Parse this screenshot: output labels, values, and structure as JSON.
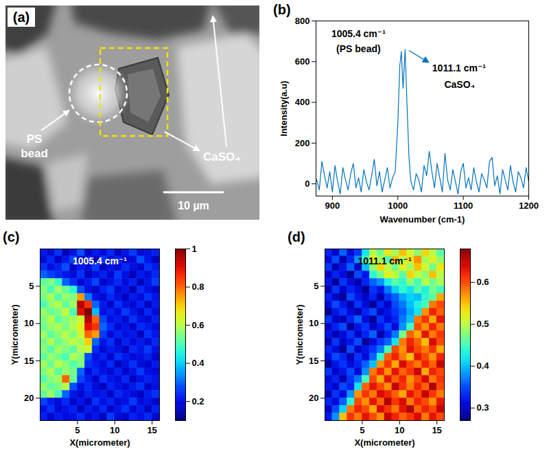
{
  "chart_data": [
    {
      "type": "image",
      "label": "(a)",
      "annotations": [
        "PS bead",
        "CaSO₄"
      ],
      "scale_bar": "10 µm"
    },
    {
      "type": "line",
      "label": "(b)",
      "color": "#0072bd",
      "x": [
        876,
        880,
        884,
        888,
        892,
        896,
        900,
        904,
        908,
        912,
        916,
        920,
        924,
        928,
        932,
        936,
        940,
        944,
        948,
        952,
        956,
        960,
        964,
        968,
        972,
        976,
        980,
        984,
        988,
        992,
        996,
        1000,
        1003,
        1005.4,
        1008,
        1011.1,
        1014,
        1017,
        1020,
        1024,
        1028,
        1032,
        1036,
        1040,
        1044,
        1048,
        1052,
        1056,
        1060,
        1064,
        1068,
        1072,
        1076,
        1080,
        1084,
        1088,
        1092,
        1096,
        1100,
        1104,
        1108,
        1112,
        1116,
        1120,
        1124,
        1128,
        1132,
        1136,
        1140,
        1144,
        1148,
        1152,
        1156,
        1160,
        1164,
        1168,
        1172,
        1176,
        1180,
        1184,
        1188,
        1192,
        1196,
        1200
      ],
      "values": [
        20,
        -30,
        110,
        40,
        -20,
        60,
        -40,
        90,
        10,
        -50,
        80,
        20,
        -30,
        50,
        100,
        -20,
        30,
        -40,
        70,
        10,
        -30,
        40,
        120,
        -10,
        60,
        -40,
        20,
        80,
        -20,
        30,
        60,
        300,
        580,
        650,
        470,
        660,
        390,
        130,
        10,
        -30,
        50,
        20,
        -40,
        90,
        40,
        160,
        60,
        -20,
        100,
        30,
        -40,
        150,
        20,
        -30,
        70,
        10,
        -50,
        60,
        100,
        -20,
        30,
        -30,
        80,
        10,
        -40,
        50,
        20,
        -20,
        110,
        130,
        -10,
        40,
        -50,
        70,
        20,
        -30,
        90,
        10,
        -40,
        60,
        30,
        -20,
        80,
        10
      ],
      "xlim": [
        875,
        1200
      ],
      "xticks": [
        900,
        1000,
        1100,
        1200
      ],
      "ylim": [
        -60,
        800
      ],
      "yticks": [
        0,
        200,
        400,
        600,
        800
      ],
      "xlabel": "Wavenumber (cm-1)",
      "ylabel": "Intensity(a.u)",
      "annotations": [
        {
          "x": 1005.4,
          "text": [
            "1005.4 cm⁻¹",
            "(PS bead)"
          ]
        },
        {
          "x": 1011.1,
          "text": [
            "1011.1 cm⁻¹",
            "CaSO₄"
          ]
        }
      ]
    },
    {
      "type": "heatmap",
      "label": "(c)",
      "title": "1005.4 cm⁻¹",
      "xlabel": "X(micrometer)",
      "ylabel": "Y(micrometer)",
      "xlim": [
        0,
        16
      ],
      "xticks": [
        5,
        10,
        15
      ],
      "ylim": [
        0,
        23
      ],
      "yticks": [
        5,
        10,
        15,
        20
      ],
      "x_edges": [
        0,
        1,
        2,
        3,
        4,
        5,
        6,
        7,
        8,
        9,
        10,
        11,
        12,
        13,
        14,
        15,
        16
      ],
      "y_edges": [
        0,
        1,
        2,
        3,
        4,
        5,
        6,
        7,
        8,
        9,
        10,
        11,
        12,
        13,
        14,
        15,
        16,
        17,
        18,
        19,
        20,
        21,
        22,
        23
      ],
      "colorbar_lim": [
        0.1,
        1
      ],
      "colorbar_ticks": [
        0.2,
        0.4,
        0.6,
        0.8,
        1
      ],
      "values": [
        [
          0.22,
          0.18,
          0.25,
          0.15,
          0.2,
          0.28,
          0.17,
          0.22,
          0.19,
          0.24,
          0.16,
          0.21,
          0.26,
          0.18,
          0.2,
          0.23
        ],
        [
          0.19,
          0.24,
          0.16,
          0.21,
          0.27,
          0.18,
          0.22,
          0.15,
          0.25,
          0.2,
          0.23,
          0.17,
          0.19,
          0.28,
          0.21,
          0.16
        ],
        [
          0.25,
          0.2,
          0.23,
          0.28,
          0.17,
          0.22,
          0.19,
          0.26,
          0.16,
          0.21,
          0.18,
          0.24,
          0.2,
          0.17,
          0.25,
          0.22
        ],
        [
          0.3,
          0.27,
          0.24,
          0.21,
          0.19,
          0.25,
          0.16,
          0.2,
          0.23,
          0.18,
          0.26,
          0.2,
          0.15,
          0.22,
          0.19,
          0.24
        ],
        [
          0.52,
          0.55,
          0.49,
          0.3,
          0.24,
          0.18,
          0.22,
          0.27,
          0.17,
          0.2,
          0.24,
          0.19,
          0.23,
          0.16,
          0.21,
          0.26
        ],
        [
          0.56,
          0.5,
          0.58,
          0.53,
          0.47,
          0.28,
          0.2,
          0.17,
          0.23,
          0.26,
          0.18,
          0.21,
          0.15,
          0.24,
          0.2,
          0.17
        ],
        [
          0.54,
          0.59,
          0.51,
          0.57,
          0.55,
          0.75,
          0.32,
          0.21,
          0.18,
          0.24,
          0.2,
          0.16,
          0.22,
          0.19,
          0.25,
          0.21
        ],
        [
          0.5,
          0.56,
          0.6,
          0.52,
          0.58,
          0.95,
          0.85,
          0.3,
          0.22,
          0.17,
          0.25,
          0.2,
          0.18,
          0.23,
          0.16,
          0.22
        ],
        [
          0.57,
          0.53,
          0.55,
          0.61,
          0.5,
          0.9,
          1.0,
          0.38,
          0.2,
          0.23,
          0.19,
          0.26,
          0.21,
          0.17,
          0.24,
          0.19
        ],
        [
          0.55,
          0.6,
          0.52,
          0.56,
          0.58,
          0.62,
          0.95,
          0.8,
          0.27,
          0.2,
          0.22,
          0.18,
          0.25,
          0.2,
          0.18,
          0.23
        ],
        [
          0.53,
          0.57,
          0.59,
          0.54,
          0.6,
          0.65,
          0.9,
          0.85,
          0.3,
          0.24,
          0.18,
          0.21,
          0.17,
          0.24,
          0.22,
          0.19
        ],
        [
          0.58,
          0.52,
          0.56,
          0.6,
          0.55,
          0.63,
          0.8,
          0.75,
          0.26,
          0.19,
          0.23,
          0.2,
          0.22,
          0.16,
          0.25,
          0.21
        ],
        [
          0.54,
          0.59,
          0.53,
          0.57,
          0.61,
          0.58,
          0.7,
          0.3,
          0.21,
          0.25,
          0.17,
          0.23,
          0.19,
          0.22,
          0.18,
          0.24
        ],
        [
          0.56,
          0.51,
          0.58,
          0.55,
          0.52,
          0.6,
          0.62,
          0.24,
          0.18,
          0.22,
          0.2,
          0.16,
          0.24,
          0.21,
          0.26,
          0.2
        ],
        [
          0.52,
          0.57,
          0.54,
          0.5,
          0.59,
          0.56,
          0.28,
          0.2,
          0.23,
          0.17,
          0.25,
          0.22,
          0.18,
          0.2,
          0.23,
          0.17
        ],
        [
          0.58,
          0.53,
          0.6,
          0.56,
          0.51,
          0.55,
          0.25,
          0.22,
          0.19,
          0.24,
          0.16,
          0.2,
          0.25,
          0.19,
          0.17,
          0.22
        ],
        [
          0.55,
          0.59,
          0.52,
          0.57,
          0.54,
          0.3,
          0.19,
          0.24,
          0.2,
          0.18,
          0.23,
          0.17,
          0.21,
          0.26,
          0.2,
          0.18
        ],
        [
          0.51,
          0.56,
          0.58,
          0.8,
          0.53,
          0.27,
          0.22,
          0.17,
          0.25,
          0.21,
          0.19,
          0.24,
          0.16,
          0.2,
          0.23,
          0.21
        ],
        [
          0.57,
          0.52,
          0.55,
          0.6,
          0.28,
          0.2,
          0.24,
          0.19,
          0.16,
          0.23,
          0.2,
          0.18,
          0.22,
          0.25,
          0.17,
          0.2
        ],
        [
          0.53,
          0.58,
          0.5,
          0.3,
          0.21,
          0.18,
          0.23,
          0.2,
          0.22,
          0.17,
          0.24,
          0.21,
          0.19,
          0.16,
          0.22,
          0.25
        ],
        [
          0.27,
          0.22,
          0.19,
          0.24,
          0.17,
          0.21,
          0.16,
          0.25,
          0.2,
          0.23,
          0.18,
          0.2,
          0.26,
          0.19,
          0.21,
          0.17
        ],
        [
          0.2,
          0.25,
          0.18,
          0.21,
          0.23,
          0.16,
          0.22,
          0.19,
          0.24,
          0.17,
          0.21,
          0.25,
          0.18,
          0.22,
          0.16,
          0.23
        ],
        [
          0.23,
          0.17,
          0.22,
          0.19,
          0.2,
          0.24,
          0.18,
          0.21,
          0.16,
          0.26,
          0.19,
          0.17,
          0.23,
          0.2,
          0.24,
          0.18
        ]
      ]
    },
    {
      "type": "heatmap",
      "label": "(d)",
      "title": "1011.1 cm⁻¹",
      "xlabel": "X(micrometer)",
      "ylabel": "Y(micrometer)",
      "xlim": [
        0,
        16
      ],
      "xticks": [
        5,
        10,
        15
      ],
      "ylim": [
        0,
        23
      ],
      "yticks": [
        5,
        10,
        15,
        20
      ],
      "x_edges": [
        0,
        1,
        2,
        3,
        4,
        5,
        6,
        7,
        8,
        9,
        10,
        11,
        12,
        13,
        14,
        15,
        16
      ],
      "y_edges": [
        0,
        1,
        2,
        3,
        4,
        5,
        6,
        7,
        8,
        9,
        10,
        11,
        12,
        13,
        14,
        15,
        16,
        17,
        18,
        19,
        20,
        21,
        22,
        23
      ],
      "colorbar_lim": [
        0.27,
        0.68
      ],
      "colorbar_ticks": [
        0.3,
        0.4,
        0.5,
        0.6
      ],
      "values": [
        [
          0.33,
          0.3,
          0.36,
          0.31,
          0.34,
          0.42,
          0.5,
          0.47,
          0.53,
          0.49,
          0.55,
          0.51,
          0.48,
          0.54,
          0.5,
          0.46
        ],
        [
          0.31,
          0.35,
          0.29,
          0.33,
          0.38,
          0.45,
          0.52,
          0.49,
          0.46,
          0.55,
          0.5,
          0.53,
          0.57,
          0.49,
          0.52,
          0.48
        ],
        [
          0.34,
          0.29,
          0.32,
          0.36,
          0.3,
          0.4,
          0.48,
          0.54,
          0.5,
          0.47,
          0.52,
          0.49,
          0.55,
          0.51,
          0.47,
          0.53
        ],
        [
          0.3,
          0.33,
          0.31,
          0.28,
          0.35,
          0.32,
          0.44,
          0.47,
          0.52,
          0.5,
          0.46,
          0.54,
          0.5,
          0.48,
          0.55,
          0.5
        ],
        [
          0.32,
          0.28,
          0.34,
          0.31,
          0.29,
          0.33,
          0.36,
          0.38,
          0.43,
          0.46,
          0.44,
          0.48,
          0.45,
          0.5,
          0.47,
          0.49
        ],
        [
          0.29,
          0.34,
          0.3,
          0.33,
          0.31,
          0.28,
          0.34,
          0.32,
          0.37,
          0.41,
          0.44,
          0.42,
          0.46,
          0.43,
          0.47,
          0.45
        ],
        [
          0.33,
          0.3,
          0.28,
          0.35,
          0.32,
          0.3,
          0.33,
          0.29,
          0.34,
          0.36,
          0.39,
          0.41,
          0.4,
          0.44,
          0.46,
          0.56
        ],
        [
          0.31,
          0.35,
          0.32,
          0.29,
          0.34,
          0.31,
          0.28,
          0.33,
          0.3,
          0.35,
          0.37,
          0.4,
          0.43,
          0.45,
          0.58,
          0.6
        ],
        [
          0.28,
          0.32,
          0.34,
          0.31,
          0.29,
          0.33,
          0.35,
          0.3,
          0.32,
          0.34,
          0.36,
          0.39,
          0.42,
          0.57,
          0.62,
          0.59
        ],
        [
          0.34,
          0.3,
          0.29,
          0.33,
          0.36,
          0.31,
          0.28,
          0.34,
          0.31,
          0.33,
          0.37,
          0.4,
          0.58,
          0.61,
          0.56,
          0.63
        ],
        [
          0.3,
          0.33,
          0.35,
          0.28,
          0.32,
          0.34,
          0.3,
          0.32,
          0.35,
          0.31,
          0.38,
          0.45,
          0.6,
          0.57,
          0.62,
          0.58
        ],
        [
          0.32,
          0.29,
          0.31,
          0.34,
          0.3,
          0.33,
          0.36,
          0.29,
          0.33,
          0.37,
          0.47,
          0.59,
          0.56,
          0.63,
          0.58,
          0.61
        ],
        [
          0.29,
          0.34,
          0.3,
          0.32,
          0.35,
          0.28,
          0.31,
          0.34,
          0.36,
          0.42,
          0.58,
          0.62,
          0.59,
          0.55,
          0.64,
          0.6
        ],
        [
          0.33,
          0.31,
          0.28,
          0.35,
          0.3,
          0.32,
          0.34,
          0.37,
          0.45,
          0.6,
          0.57,
          0.63,
          0.6,
          0.58,
          0.61,
          0.56
        ],
        [
          0.31,
          0.35,
          0.33,
          0.29,
          0.34,
          0.31,
          0.36,
          0.44,
          0.59,
          0.62,
          0.58,
          0.55,
          0.63,
          0.6,
          0.57,
          0.62
        ],
        [
          0.28,
          0.32,
          0.34,
          0.31,
          0.33,
          0.36,
          0.4,
          0.57,
          0.61,
          0.56,
          0.64,
          0.6,
          0.58,
          0.62,
          0.59,
          0.65
        ],
        [
          0.34,
          0.3,
          0.32,
          0.35,
          0.31,
          0.38,
          0.58,
          0.62,
          0.57,
          0.63,
          0.59,
          0.61,
          0.65,
          0.56,
          0.62,
          0.6
        ],
        [
          0.31,
          0.33,
          0.29,
          0.34,
          0.37,
          0.45,
          0.6,
          0.56,
          0.63,
          0.59,
          0.62,
          0.57,
          0.6,
          0.64,
          0.58,
          0.61
        ],
        [
          0.32,
          0.3,
          0.35,
          0.33,
          0.42,
          0.59,
          0.63,
          0.6,
          0.57,
          0.65,
          0.61,
          0.58,
          0.62,
          0.59,
          0.66,
          0.6
        ],
        [
          0.29,
          0.34,
          0.31,
          0.38,
          0.57,
          0.61,
          0.58,
          0.64,
          0.62,
          0.59,
          0.56,
          0.63,
          0.6,
          0.65,
          0.61,
          0.58
        ],
        [
          0.33,
          0.31,
          0.36,
          0.44,
          0.6,
          0.57,
          0.63,
          0.59,
          0.66,
          0.61,
          0.64,
          0.58,
          0.62,
          0.6,
          0.57,
          0.63
        ],
        [
          0.3,
          0.35,
          0.41,
          0.58,
          0.62,
          0.6,
          0.56,
          0.64,
          0.61,
          0.58,
          0.63,
          0.66,
          0.59,
          0.62,
          0.6,
          0.65
        ],
        [
          0.32,
          0.38,
          0.55,
          0.61,
          0.58,
          0.63,
          0.6,
          0.57,
          0.65,
          0.62,
          0.59,
          0.61,
          0.64,
          0.58,
          0.63,
          0.6
        ]
      ]
    }
  ]
}
